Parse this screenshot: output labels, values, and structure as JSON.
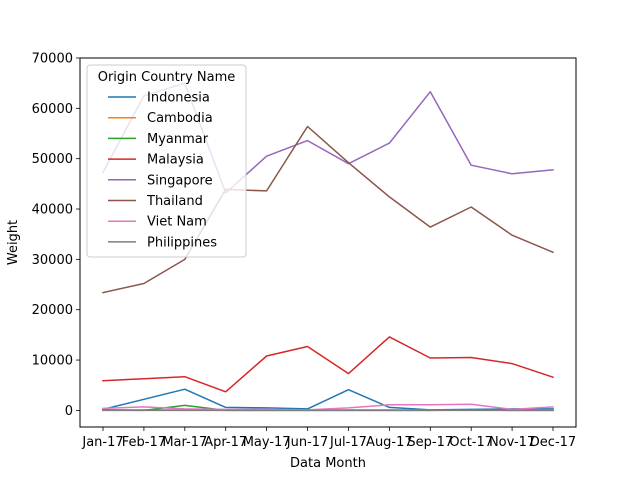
{
  "chart_data": {
    "type": "line",
    "title": "",
    "xlabel": "Data Month",
    "ylabel": "Weight",
    "categories": [
      "Jan-17",
      "Feb-17",
      "Mar-17",
      "Apr-17",
      "May-17",
      "Jun-17",
      "Jul-17",
      "Aug-17",
      "Sep-17",
      "Oct-17",
      "Nov-17",
      "Dec-17"
    ],
    "ylim": [
      -3300,
      70000
    ],
    "yticks": [
      0,
      10000,
      20000,
      30000,
      40000,
      50000,
      60000,
      70000
    ],
    "ytick_labels": [
      "0",
      "10000",
      "20000",
      "30000",
      "40000",
      "50000",
      "60000",
      "70000"
    ],
    "grid": false,
    "legend": {
      "title": "Origin Country Name",
      "placement": "top-left"
    },
    "series": [
      {
        "name": "Indonesia",
        "color": "#1f77b4",
        "values": [
          200,
          2200,
          4200,
          600,
          500,
          300,
          4100,
          600,
          100,
          200,
          300,
          300
        ]
      },
      {
        "name": "Cambodia",
        "color": "#ff7f0e",
        "values": [
          100,
          100,
          100,
          50,
          50,
          50,
          100,
          100,
          50,
          50,
          50,
          100
        ]
      },
      {
        "name": "Myanmar",
        "color": "#2ca02c",
        "values": [
          100,
          0,
          1000,
          0,
          0,
          0,
          0,
          0,
          0,
          100,
          0,
          0
        ]
      },
      {
        "name": "Malaysia",
        "color": "#d62728",
        "values": [
          5900,
          6300,
          6700,
          3700,
          10800,
          12700,
          7300,
          14600,
          10400,
          10500,
          9300,
          6600
        ]
      },
      {
        "name": "Singapore",
        "color": "#9467bd",
        "values": [
          47300,
          62500,
          65000,
          43200,
          50500,
          53600,
          49000,
          53100,
          63300,
          48700,
          47000,
          47800
        ]
      },
      {
        "name": "Thailand",
        "color": "#8c564b",
        "values": [
          23400,
          25200,
          30000,
          43900,
          43600,
          56400,
          49200,
          42400,
          36400,
          40400,
          34800,
          31400
        ]
      },
      {
        "name": "Viet Nam",
        "color": "#e377c2",
        "values": [
          400,
          700,
          300,
          200,
          200,
          100,
          500,
          1100,
          1100,
          1200,
          200,
          700
        ]
      },
      {
        "name": "Philippines",
        "color": "#7f7f7f",
        "values": [
          0,
          0,
          0,
          0,
          0,
          0,
          0,
          0,
          0,
          0,
          0,
          0
        ]
      }
    ]
  }
}
